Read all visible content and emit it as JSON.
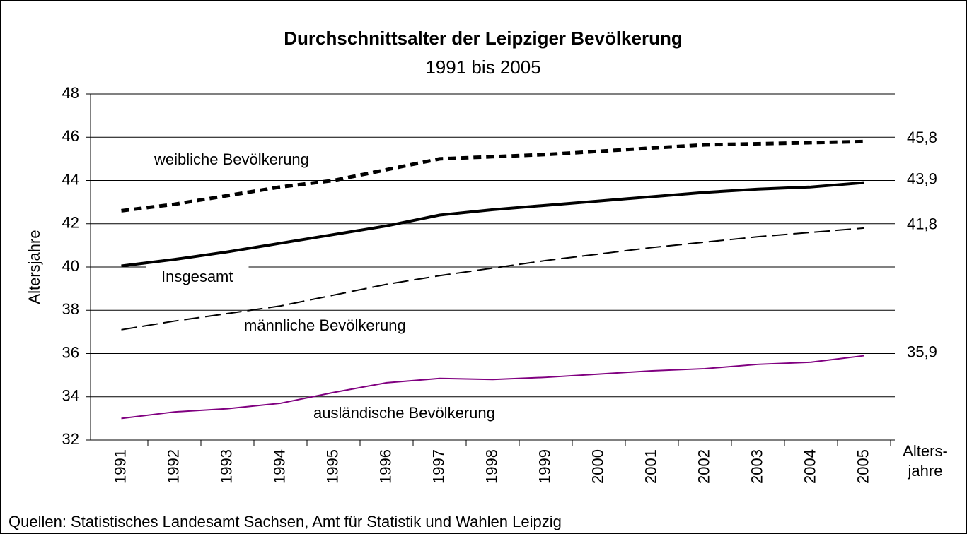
{
  "chart_data": {
    "type": "line",
    "title": "Durchschnittsalter der Leipziger Bevölkerung",
    "subtitle": "1991 bis 2005",
    "y_label": "Altersjahre",
    "y2_label": [
      "Alters-",
      "jahre"
    ],
    "source": "Quellen: Statistisches Landesamt Sachsen, Amt für Statistik und Wahlen Leipzig",
    "categories": [
      "1991",
      "1992",
      "1993",
      "1994",
      "1995",
      "1996",
      "1997",
      "1998",
      "1999",
      "2000",
      "2001",
      "2002",
      "2003",
      "2004",
      "2005"
    ],
    "ylim": [
      32,
      48
    ],
    "yticks": [
      32,
      34,
      36,
      38,
      40,
      42,
      44,
      46,
      48
    ],
    "grid": true,
    "series": [
      {
        "name": "weibliche Bevölkerung",
        "color": "#000000",
        "style": "dotted-bold",
        "values": [
          42.6,
          42.9,
          43.3,
          43.7,
          44.0,
          44.5,
          45.0,
          45.1,
          45.2,
          45.35,
          45.5,
          45.65,
          45.7,
          45.75,
          45.8
        ],
        "value_labels": [
          null,
          null,
          null,
          null,
          null,
          null,
          null,
          null,
          null,
          null,
          null,
          null,
          null,
          null,
          "45,8"
        ]
      },
      {
        "name": "Insgesamt",
        "color": "#000000",
        "style": "solid-bold",
        "values": [
          40.05,
          40.35,
          40.7,
          41.1,
          41.5,
          41.9,
          42.4,
          42.65,
          42.85,
          43.05,
          43.25,
          43.45,
          43.6,
          43.7,
          43.9
        ],
        "value_labels": [
          null,
          null,
          null,
          null,
          null,
          null,
          null,
          null,
          null,
          null,
          null,
          null,
          null,
          null,
          "43,9"
        ]
      },
      {
        "name": "männliche Bevölkerung",
        "color": "#000000",
        "style": "dashed",
        "values": [
          37.1,
          37.5,
          37.85,
          38.2,
          38.7,
          39.2,
          39.6,
          39.95,
          40.3,
          40.6,
          40.9,
          41.15,
          41.4,
          41.6,
          41.8
        ],
        "value_labels": [
          null,
          null,
          null,
          null,
          null,
          null,
          null,
          null,
          null,
          null,
          null,
          null,
          null,
          null,
          "41,8"
        ]
      },
      {
        "name": "ausländische Bevölkerung",
        "color": "#800080",
        "style": "solid",
        "values": [
          33.0,
          33.3,
          33.45,
          33.7,
          34.2,
          34.65,
          34.85,
          34.8,
          34.9,
          35.05,
          35.2,
          35.3,
          35.5,
          35.6,
          35.9
        ],
        "value_labels": [
          null,
          null,
          null,
          null,
          null,
          null,
          null,
          null,
          null,
          null,
          null,
          null,
          null,
          null,
          "35,9"
        ]
      }
    ]
  }
}
